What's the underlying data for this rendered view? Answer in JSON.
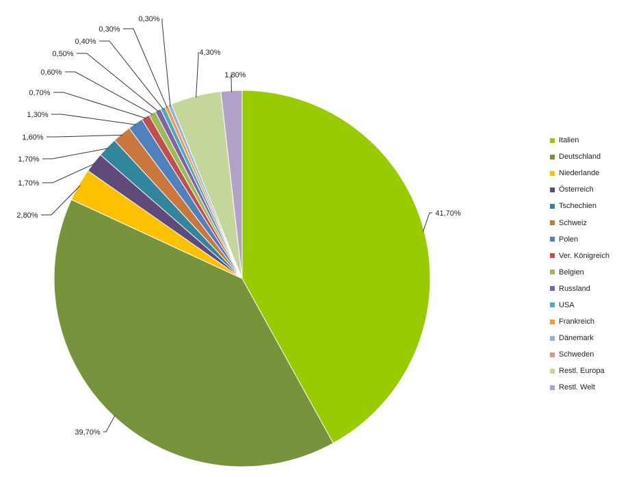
{
  "chart_data": {
    "type": "pie",
    "start_angle_deg": 0,
    "direction": "clockwise",
    "legend_position": "right",
    "slices": [
      {
        "name": "Italien",
        "value": 41.7,
        "label": "41,70%",
        "color": "#99cc00"
      },
      {
        "name": "Deutschland",
        "value": 39.7,
        "label": "39,70%",
        "color": "#77933c"
      },
      {
        "name": "Niederlande",
        "value": 2.8,
        "label": "2,80%",
        "color": "#ffc000"
      },
      {
        "name": "Österreich",
        "value": 1.7,
        "label": "1,70%",
        "color": "#604a7b"
      },
      {
        "name": "Tschechien",
        "value": 1.7,
        "label": "1,70%",
        "color": "#31859c"
      },
      {
        "name": "Schweiz",
        "value": 1.6,
        "label": "1,60%",
        "color": "#c9773c"
      },
      {
        "name": "Polen",
        "value": 1.3,
        "label": "1,30%",
        "color": "#4f81bd"
      },
      {
        "name": "Ver. Königreich",
        "value": 0.7,
        "label": "0,70%",
        "color": "#c0504d"
      },
      {
        "name": "Belgien",
        "value": 0.6,
        "label": "0,60%",
        "color": "#9bbb59"
      },
      {
        "name": "Russland",
        "value": 0.5,
        "label": "0,50%",
        "color": "#8064a2"
      },
      {
        "name": "USA",
        "value": 0.4,
        "label": "0,40%",
        "color": "#4bacc6"
      },
      {
        "name": "Frankreich",
        "value": 0.3,
        "label": "0,30%",
        "color": "#f79646"
      },
      {
        "name": "Dänemark",
        "value": 0.3,
        "label": "0,30%",
        "color": "#95b3d7"
      },
      {
        "name": "Schweden",
        "value": 0.0,
        "label": "",
        "color": "#d99694"
      },
      {
        "name": "Restl. Europa",
        "value": 4.3,
        "label": "4,30%",
        "color": "#c4d79b"
      },
      {
        "name": "Restl. Welt",
        "value": 1.8,
        "label": "1,80%",
        "color": "#b3a2c7"
      }
    ]
  }
}
